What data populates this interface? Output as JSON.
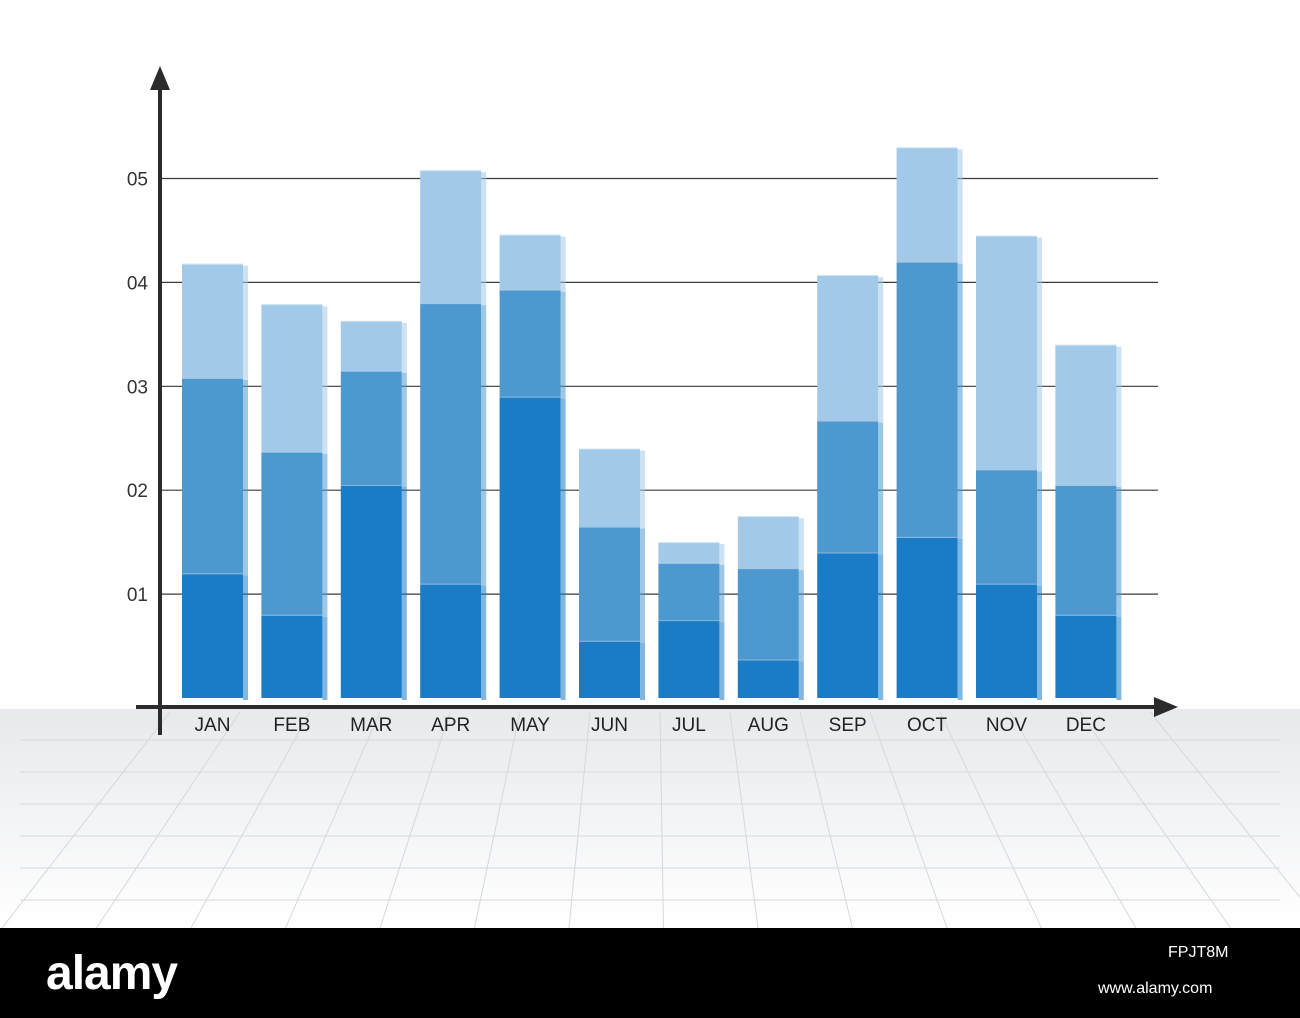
{
  "chart_data": {
    "type": "bar",
    "stacked": true,
    "title": "",
    "xlabel": "",
    "ylabel": "",
    "categories": [
      "JAN",
      "FEB",
      "MAR",
      "APR",
      "MAY",
      "JUN",
      "JUL",
      "AUG",
      "SEP",
      "OCT",
      "NOV",
      "DEC"
    ],
    "y_ticks": [
      "01",
      "02",
      "03",
      "04",
      "05"
    ],
    "ylim": [
      0,
      5.9
    ],
    "grid": true,
    "legend": "none",
    "series": [
      {
        "values": [
          1.2,
          0.8,
          2.05,
          1.1,
          2.9,
          0.55,
          0.75,
          0.37,
          1.4,
          1.55,
          1.1,
          0.8
        ]
      },
      {
        "values": [
          1.88,
          1.57,
          1.1,
          2.7,
          1.03,
          1.1,
          0.55,
          0.88,
          1.27,
          2.65,
          1.1,
          1.25
        ]
      },
      {
        "values": [
          1.1,
          1.42,
          0.48,
          1.28,
          0.53,
          0.75,
          0.2,
          0.5,
          1.4,
          1.1,
          2.25,
          1.35
        ]
      }
    ],
    "colors": [
      "#1a7cc4",
      "#4e98d0",
      "#a2c9e7"
    ]
  },
  "watermark": {
    "logo": "alamy",
    "image_id": "FPJT8M",
    "url": "www.alamy.com"
  }
}
